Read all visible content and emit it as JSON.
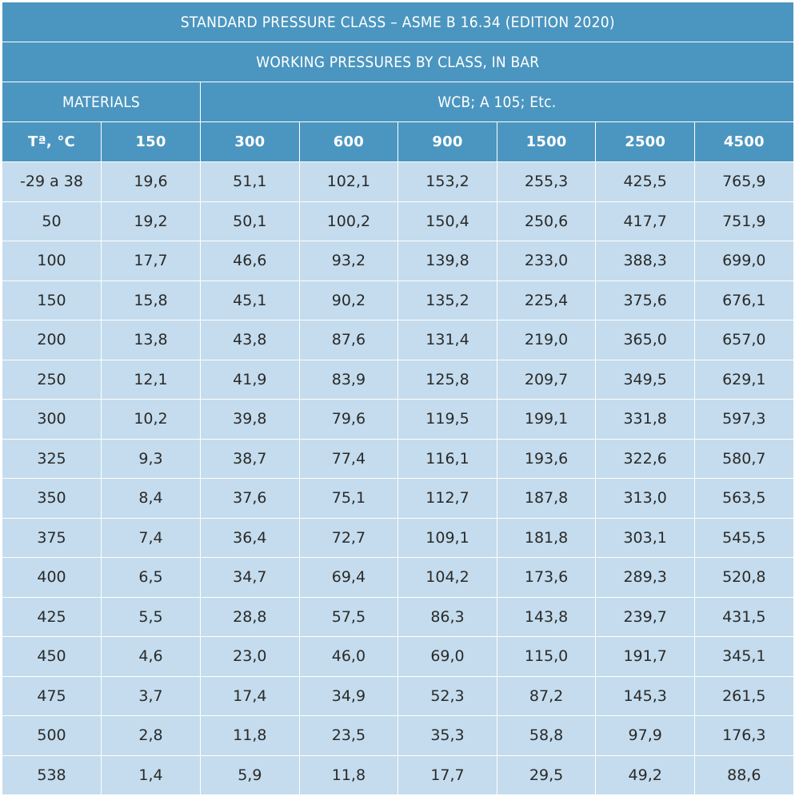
{
  "table": {
    "title": "STANDARD PRESSURE CLASS – ASME B 16.34 (EDITION 2020)",
    "subtitle": "WORKING PRESSURES BY CLASS, IN BAR",
    "materials_label": "MATERIALS",
    "materials_value": "WCB; A 105; Etc.",
    "temp_header": "Tª, °C",
    "class_headers": [
      "150",
      "300",
      "600",
      "900",
      "1500",
      "2500",
      "4500"
    ],
    "rows": [
      {
        "temp": "-29 a 38",
        "values": [
          "19,6",
          "51,1",
          "102,1",
          "153,2",
          "255,3",
          "425,5",
          "765,9"
        ]
      },
      {
        "temp": "50",
        "values": [
          "19,2",
          "50,1",
          "100,2",
          "150,4",
          "250,6",
          "417,7",
          "751,9"
        ]
      },
      {
        "temp": "100",
        "values": [
          "17,7",
          "46,6",
          "93,2",
          "139,8",
          "233,0",
          "388,3",
          "699,0"
        ]
      },
      {
        "temp": "150",
        "values": [
          "15,8",
          "45,1",
          "90,2",
          "135,2",
          "225,4",
          "375,6",
          "676,1"
        ]
      },
      {
        "temp": "200",
        "values": [
          "13,8",
          "43,8",
          "87,6",
          "131,4",
          "219,0",
          "365,0",
          "657,0"
        ]
      },
      {
        "temp": "250",
        "values": [
          "12,1",
          "41,9",
          "83,9",
          "125,8",
          "209,7",
          "349,5",
          "629,1"
        ]
      },
      {
        "temp": "300",
        "values": [
          "10,2",
          "39,8",
          "79,6",
          "119,5",
          "199,1",
          "331,8",
          "597,3"
        ]
      },
      {
        "temp": "325",
        "values": [
          "9,3",
          "38,7",
          "77,4",
          "116,1",
          "193,6",
          "322,6",
          "580,7"
        ]
      },
      {
        "temp": "350",
        "values": [
          "8,4",
          "37,6",
          "75,1",
          "112,7",
          "187,8",
          "313,0",
          "563,5"
        ]
      },
      {
        "temp": "375",
        "values": [
          "7,4",
          "36,4",
          "72,7",
          "109,1",
          "181,8",
          "303,1",
          "545,5"
        ]
      },
      {
        "temp": "400",
        "values": [
          "6,5",
          "34,7",
          "69,4",
          "104,2",
          "173,6",
          "289,3",
          "520,8"
        ]
      },
      {
        "temp": "425",
        "values": [
          "5,5",
          "28,8",
          "57,5",
          "86,3",
          "143,8",
          "239,7",
          "431,5"
        ]
      },
      {
        "temp": "450",
        "values": [
          "4,6",
          "23,0",
          "46,0",
          "69,0",
          "115,0",
          "191,7",
          "345,1"
        ]
      },
      {
        "temp": "475",
        "values": [
          "3,7",
          "17,4",
          "34,9",
          "52,3",
          "87,2",
          "145,3",
          "261,5"
        ]
      },
      {
        "temp": "500",
        "values": [
          "2,8",
          "11,8",
          "23,5",
          "35,3",
          "58,8",
          "97,9",
          "176,3"
        ]
      },
      {
        "temp": "538",
        "values": [
          "1,4",
          "5,9",
          "11,8",
          "17,7",
          "29,5",
          "49,2",
          "88,6"
        ]
      }
    ]
  },
  "colors": {
    "header_bg": "#4b96c0",
    "header_text": "#ffffff",
    "cell_bg": "#c4dced",
    "cell_text": "#2a2a2a",
    "grid": "#ffffff"
  }
}
